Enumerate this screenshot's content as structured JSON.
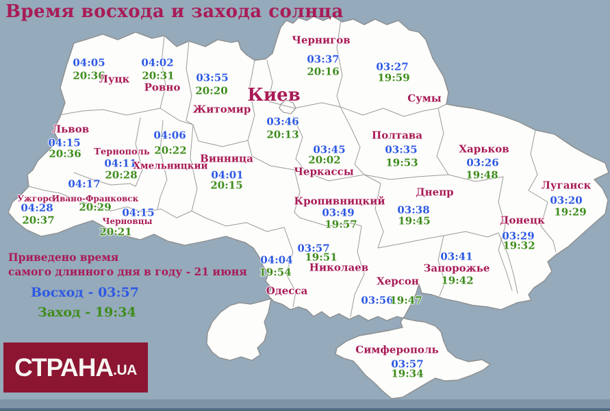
{
  "title": "Время восхода и захода солнца",
  "legend": {
    "line1": "Приведено время",
    "line2": "самого длинного дня в году - 21 июня",
    "sunrise": "Восход - 03:57",
    "sunset": "Заход - 19:34"
  },
  "logo": {
    "name": "СТРАНА",
    "domain": ".UA"
  },
  "colors": {
    "background": "#95aabb",
    "land": "#fdfdfb",
    "border": "#8d8d8d",
    "city_label": "#a81b56",
    "sunrise_time": "#2e59e2",
    "sunset_time": "#3f8c1c",
    "logo_background": "#8c1532"
  },
  "cities": [
    {
      "name": "Луцк",
      "sunrise": "04:05",
      "sunset": "20:36"
    },
    {
      "name": "Ровно",
      "sunrise": "04:02",
      "sunset": "20:31"
    },
    {
      "name": "Житомир",
      "sunrise": "03:55",
      "sunset": "20:20"
    },
    {
      "name": "Чернигов",
      "sunrise": "03:37",
      "sunset": "20:16"
    },
    {
      "name": "Сумы",
      "sunrise": "03:27",
      "sunset": "19:59"
    },
    {
      "name": "Киев",
      "sunrise": "03:46",
      "sunset": "20:13"
    },
    {
      "name": "Львов",
      "sunrise": "04:15",
      "sunset": "20:36"
    },
    {
      "name": "Тернополь",
      "sunrise": "04:11",
      "sunset": "20:28"
    },
    {
      "name": "Хмельницкий",
      "sunrise": "04:06",
      "sunset": "20:22"
    },
    {
      "name": "Винница",
      "sunrise": "04:01",
      "sunset": "20:15"
    },
    {
      "name": "Черкассы",
      "sunrise": "03:45",
      "sunset": "20:02"
    },
    {
      "name": "Полтава",
      "sunrise": "03:35",
      "sunset": "19:53"
    },
    {
      "name": "Харьков",
      "sunrise": "03:26",
      "sunset": "19:48"
    },
    {
      "name": "Луганск",
      "sunrise": "03:20",
      "sunset": "19:29"
    },
    {
      "name": "Ужгород",
      "sunrise": "04:28",
      "sunset": "20:37"
    },
    {
      "name": "Ивано-Франковск",
      "sunrise": "04:17",
      "sunset": "20:29"
    },
    {
      "name": "Черновцы",
      "sunrise": "04:15",
      "sunset": "20:21"
    },
    {
      "name": "Кропивницкий",
      "sunrise": "03:49",
      "sunset": "19:57"
    },
    {
      "name": "Днепр",
      "sunrise": "03:38",
      "sunset": "19:45"
    },
    {
      "name": "Запорожье",
      "sunrise": "03:41",
      "sunset": "19:42"
    },
    {
      "name": "Одесса",
      "sunrise": "04:04",
      "sunset": "19:54"
    },
    {
      "name": "Николаев",
      "sunrise": "03:57",
      "sunset": "19:51"
    },
    {
      "name": "Херсон",
      "sunrise": "03:56",
      "sunset": "19:47"
    },
    {
      "name": "Симферополь",
      "sunrise": "03:57",
      "sunset": "19:34"
    },
    {
      "name": "Донецк",
      "sunrise": "03:29",
      "sunset": "19:32"
    }
  ]
}
